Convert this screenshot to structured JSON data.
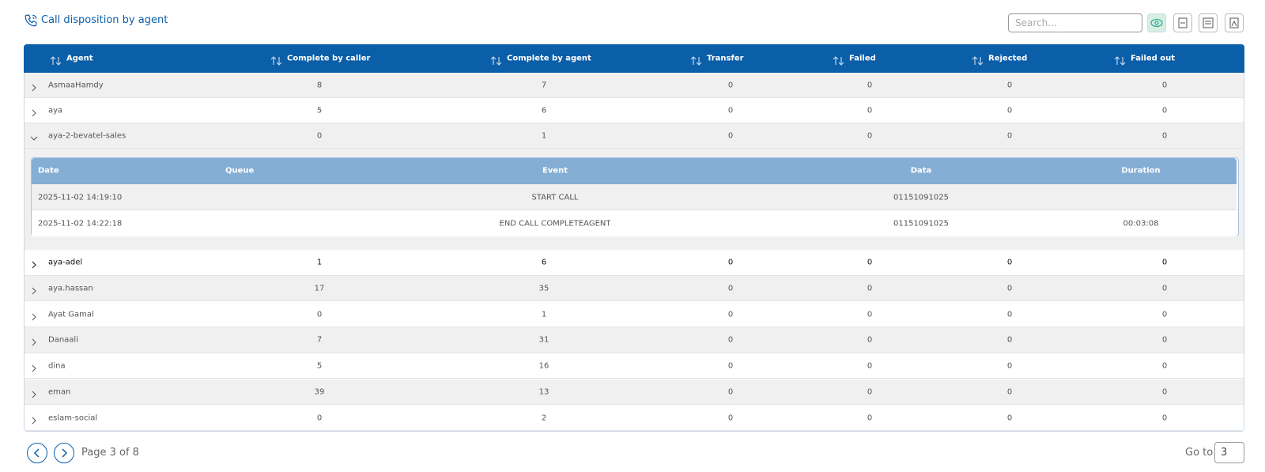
{
  "header": {
    "title": "Call disposition by agent",
    "search_placeholder": "Search..."
  },
  "table": {
    "columns": [
      "Agent",
      "Complete by caller",
      "Complete by agent",
      "Transfer",
      "Failed",
      "Rejected",
      "Failed out"
    ],
    "rows": [
      {
        "agent": "AsmaaHamdy",
        "values": [
          8,
          7,
          0,
          0,
          0,
          0
        ]
      },
      {
        "agent": "aya",
        "values": [
          5,
          6,
          0,
          0,
          0,
          0
        ]
      },
      {
        "agent": "aya-2-bevatel-sales",
        "values": [
          0,
          1,
          0,
          0,
          0,
          0
        ],
        "details": {
          "columns": [
            "Date",
            "Queue",
            "Event",
            "Data",
            "Duration"
          ],
          "rows": [
            {
              "date": "2025-11-02 14:19:10",
              "event": "START CALL",
              "data": "01151091025"
            },
            {
              "date": "2025-11-02 14:22:18",
              "event": "END CALL COMPLETEAGENT",
              "data": "01151091025",
              "duration": "00:03:08"
            }
          ]
        }
      },
      {
        "agent": "aya-adel",
        "values": [
          1,
          6,
          0,
          0,
          0,
          0
        ]
      },
      {
        "agent": "aya.hassan",
        "values": [
          17,
          35,
          0,
          0,
          0,
          0
        ]
      },
      {
        "agent": "Ayat Gamal",
        "values": [
          0,
          1,
          0,
          0,
          0,
          0
        ]
      },
      {
        "agent": "Danaali",
        "values": [
          7,
          31,
          0,
          0,
          0,
          0
        ]
      },
      {
        "agent": "dina",
        "values": [
          5,
          16,
          0,
          0,
          0,
          0
        ]
      },
      {
        "agent": "eman",
        "values": [
          39,
          13,
          0,
          0,
          0,
          0
        ]
      },
      {
        "agent": "eslam-social",
        "values": [
          0,
          2,
          0,
          0,
          0,
          0
        ]
      }
    ]
  },
  "pagination": {
    "label": "Page 3 of 8",
    "goto_label": "Go to",
    "goto_value": 3
  }
}
